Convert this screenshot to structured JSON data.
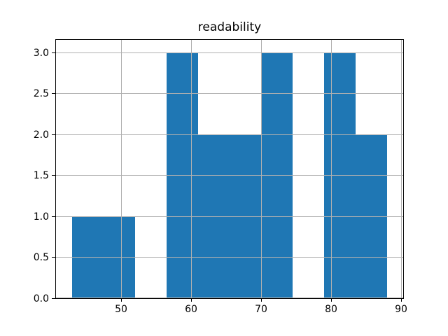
{
  "chart_data": {
    "type": "bar",
    "subtype": "histogram",
    "title": "readability",
    "xlabel": "",
    "ylabel": "",
    "bin_edges": [
      43,
      47.5,
      52,
      56.5,
      61,
      65.5,
      70,
      74.5,
      79,
      83.5,
      88
    ],
    "counts": [
      1,
      1,
      0,
      3,
      2,
      2,
      3,
      0,
      3,
      2
    ],
    "xlim": [
      40.75,
      90.25
    ],
    "ylim": [
      0,
      3.15
    ],
    "xticks": [
      50,
      60,
      70,
      80,
      90
    ],
    "xtick_labels": [
      "50",
      "60",
      "70",
      "80",
      "90"
    ],
    "yticks": [
      0.0,
      0.5,
      1.0,
      1.5,
      2.0,
      2.5,
      3.0
    ],
    "ytick_labels": [
      "0.0",
      "0.5",
      "1.0",
      "1.5",
      "2.0",
      "2.5",
      "3.0"
    ],
    "grid": true,
    "grid_above_bars": true,
    "legend": null,
    "bar_color": "#1f77b4",
    "grid_color": "#b0b0b0",
    "axis_color": "#000000",
    "text_color": "#000000",
    "background_color": "#ffffff"
  }
}
